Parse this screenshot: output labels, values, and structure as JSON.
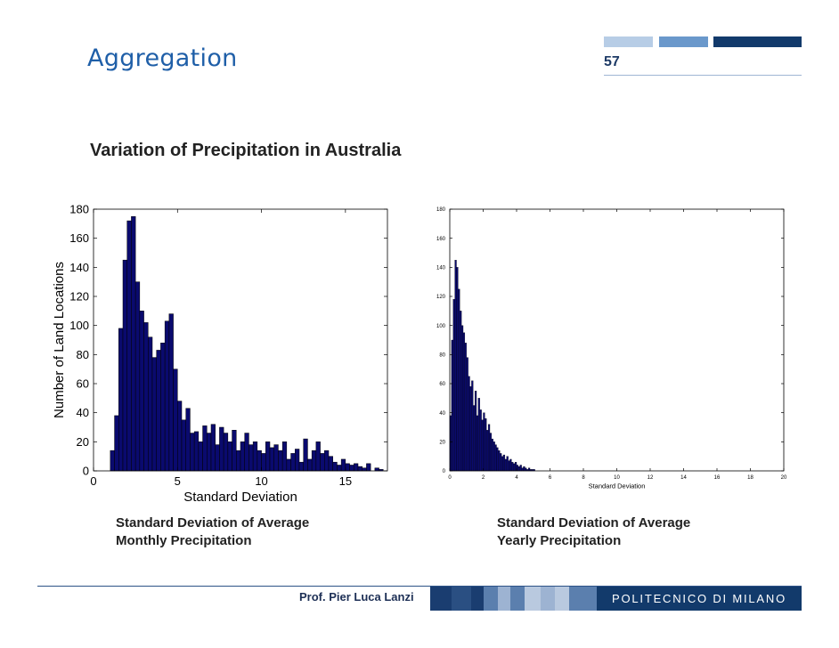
{
  "slide": {
    "title": "Aggregation",
    "number": "57",
    "subtitle": "Variation of Precipitation in Australia"
  },
  "captions": {
    "left_line1": "Standard Deviation of Average",
    "left_line2": "Monthly Precipitation",
    "right_line1": "Standard Deviation of Average",
    "right_line2": "Yearly Precipitation"
  },
  "footer": {
    "author": "Prof. Pier Luca Lanzi",
    "logo_text": "POLITECNICO DI MILANO"
  },
  "colors": {
    "title_blue": "#1f5fa8",
    "bar_fill": "#0a0a6e",
    "bar_stroke": "#000000",
    "footer_navy": "#123a6b"
  },
  "chart_data": [
    {
      "type": "bar",
      "histogram": true,
      "bin_width": 0.25,
      "x": [
        1.0,
        1.25,
        1.5,
        1.75,
        2.0,
        2.25,
        2.5,
        2.75,
        3.0,
        3.25,
        3.5,
        3.75,
        4.0,
        4.25,
        4.5,
        4.75,
        5.0,
        5.25,
        5.5,
        5.75,
        6.0,
        6.25,
        6.5,
        6.75,
        7.0,
        7.25,
        7.5,
        7.75,
        8.0,
        8.25,
        8.5,
        8.75,
        9.0,
        9.25,
        9.5,
        9.75,
        10.0,
        10.25,
        10.5,
        10.75,
        11.0,
        11.25,
        11.5,
        11.75,
        12.0,
        12.25,
        12.5,
        12.75,
        13.0,
        13.25,
        13.5,
        13.75,
        14.0,
        14.25,
        14.5,
        14.75,
        15.0,
        15.25,
        15.5,
        15.75,
        16.0,
        16.25,
        16.5,
        16.75,
        17.0
      ],
      "values": [
        14,
        38,
        98,
        145,
        172,
        175,
        130,
        110,
        102,
        92,
        78,
        83,
        88,
        103,
        108,
        70,
        48,
        35,
        43,
        26,
        27,
        20,
        31,
        26,
        32,
        18,
        30,
        26,
        20,
        28,
        14,
        20,
        26,
        18,
        20,
        14,
        12,
        20,
        16,
        18,
        14,
        20,
        8,
        12,
        15,
        6,
        22,
        8,
        14,
        20,
        12,
        14,
        10,
        6,
        4,
        8,
        5,
        4,
        5,
        3,
        2,
        5,
        0,
        2,
        1
      ],
      "xlim": [
        0,
        17.5
      ],
      "ylim": [
        0,
        180
      ],
      "xticks": [
        0,
        5,
        10,
        15
      ],
      "yticks": [
        0,
        20,
        40,
        60,
        80,
        100,
        120,
        140,
        160,
        180
      ],
      "xlabel": "Standard Deviation",
      "ylabel": "Number of Land Locations",
      "grid": false
    },
    {
      "type": "bar",
      "histogram": true,
      "bin_width": 0.1,
      "x": [
        0.0,
        0.1,
        0.2,
        0.3,
        0.4,
        0.5,
        0.6,
        0.7,
        0.8,
        0.9,
        1.0,
        1.1,
        1.2,
        1.3,
        1.4,
        1.5,
        1.6,
        1.7,
        1.8,
        1.9,
        2.0,
        2.1,
        2.2,
        2.3,
        2.4,
        2.5,
        2.6,
        2.7,
        2.8,
        2.9,
        3.0,
        3.1,
        3.2,
        3.3,
        3.4,
        3.5,
        3.6,
        3.7,
        3.8,
        3.9,
        4.0,
        4.1,
        4.2,
        4.3,
        4.4,
        4.5,
        4.6,
        4.7,
        4.8,
        4.9,
        5.0
      ],
      "values": [
        38,
        90,
        118,
        145,
        140,
        125,
        110,
        100,
        95,
        88,
        78,
        65,
        58,
        62,
        45,
        55,
        38,
        50,
        42,
        35,
        40,
        36,
        28,
        32,
        26,
        22,
        20,
        18,
        16,
        14,
        12,
        10,
        11,
        8,
        10,
        7,
        8,
        6,
        5,
        6,
        4,
        3,
        4,
        2,
        3,
        2,
        1,
        2,
        1,
        1,
        1
      ],
      "xlim": [
        0,
        20
      ],
      "ylim": [
        0,
        180
      ],
      "xticks": [
        0,
        2,
        4,
        6,
        8,
        10,
        12,
        14,
        16,
        18,
        20
      ],
      "yticks": [
        0,
        20,
        40,
        60,
        80,
        100,
        120,
        140,
        160,
        180
      ],
      "xlabel": "Standard Deviation",
      "ylabel": "",
      "grid": false
    }
  ]
}
